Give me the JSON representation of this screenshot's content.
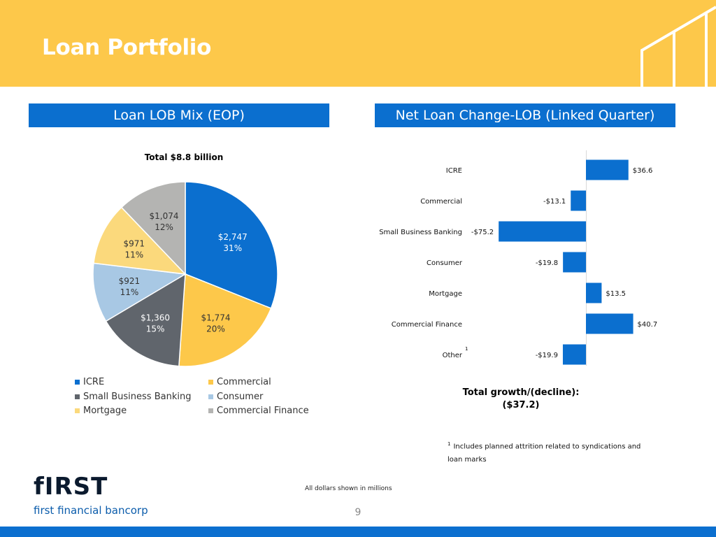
{
  "header": {
    "title": "Loan Portfolio"
  },
  "sections": {
    "left": "Loan LOB Mix (EOP)",
    "right": "Net Loan Change-LOB (Linked Quarter)"
  },
  "colors": {
    "header_bg": "#fdc84a",
    "accent_blue": "#0b6fcf",
    "icre": "#0b6fcf",
    "commercial": "#fdc84a",
    "sbb": "#60656c",
    "consumer": "#a8c8e4",
    "mortgage": "#fbd97c",
    "commercial_finance": "#b4b4b2"
  },
  "chart_data": [
    {
      "type": "pie",
      "title": "Total $8.8 billion",
      "start": "12 o'clock",
      "direction": "clockwise",
      "slices": [
        {
          "name": "ICRE",
          "value": 2747,
          "label": "$2,747",
          "pct": "31%",
          "color": "#0b6fcf"
        },
        {
          "name": "Commercial",
          "value": 1774,
          "label": "$1,774",
          "pct": "20%",
          "color": "#fdc84a"
        },
        {
          "name": "Small Business Banking",
          "value": 1360,
          "label": "$1,360",
          "pct": "15%",
          "color": "#60656c"
        },
        {
          "name": "Consumer",
          "value": 921,
          "label": "$921",
          "pct": "11%",
          "color": "#a8c8e4"
        },
        {
          "name": "Mortgage",
          "value": 971,
          "label": "$971",
          "pct": "11%",
          "color": "#fbd97c"
        },
        {
          "name": "Commercial Finance",
          "value": 1074,
          "label": "$1,074",
          "pct": "12%",
          "color": "#b4b4b2"
        }
      ],
      "legend": [
        "ICRE",
        "Commercial",
        "Small Business Banking",
        "Consumer",
        "Mortgage",
        "Commercial Finance"
      ],
      "units": "$ millions"
    },
    {
      "type": "bar",
      "orientation": "horizontal",
      "categories": [
        "ICRE",
        "Commercial",
        "Small Business Banking",
        "Consumer",
        "Mortgage",
        "Commercial Finance",
        "Other"
      ],
      "values": [
        36.6,
        -13.1,
        -75.2,
        -19.8,
        13.5,
        40.7,
        -19.9
      ],
      "labels": [
        "$36.6",
        "-$13.1",
        "-$75.2",
        "-$19.8",
        "$13.5",
        "$40.7",
        "-$19.9"
      ],
      "footnote_marks": {
        "Other": "1"
      },
      "xlim": [
        -80,
        45
      ],
      "color": "#0b6fcf",
      "units": "$ millions"
    }
  ],
  "total_growth": {
    "label": "Total growth/(decline):",
    "value": "($37.2)"
  },
  "footnote": {
    "mark": "1",
    "text": "Includes planned attrition related to syndications and loan marks"
  },
  "logo": {
    "word": "fIRST",
    "sub": "first financial bancorp"
  },
  "dollars_note": "All dollars shown in millions",
  "page_number": "9"
}
